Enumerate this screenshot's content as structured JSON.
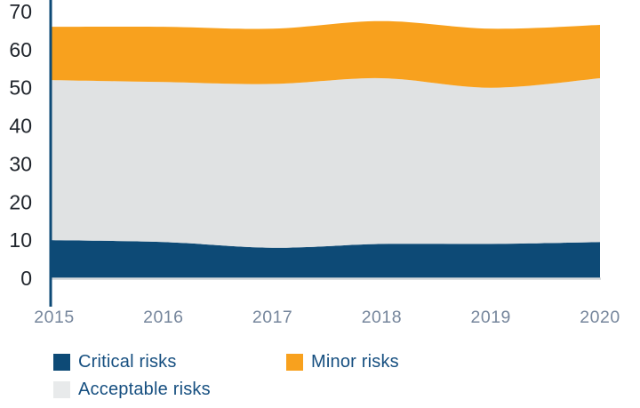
{
  "chart_data": {
    "type": "area",
    "stacked": true,
    "title": "",
    "xlabel": "",
    "ylabel": "",
    "x": [
      "2015",
      "2016",
      "2017",
      "2018",
      "2019",
      "2020"
    ],
    "series": [
      {
        "name": "Critical risks",
        "color": "#0d4a76",
        "values": [
          10,
          9.5,
          8,
          9,
          9,
          9.5
        ]
      },
      {
        "name": "Acceptable risks",
        "color": "#e0e2e3",
        "values": [
          42,
          42,
          43,
          43.5,
          41,
          43
        ]
      },
      {
        "name": "Minor risks",
        "color": "#f8a11e",
        "values": [
          14,
          14.5,
          14.5,
          15,
          15.5,
          14
        ]
      }
    ],
    "stacked_totals": [
      66,
      66,
      65.5,
      67.5,
      65.5,
      66.5
    ],
    "ylim": [
      0,
      70
    ],
    "yticks": [
      "0",
      "10",
      "20",
      "30",
      "40",
      "50",
      "60",
      "70"
    ],
    "grid": false,
    "legend_position": "bottom-left"
  },
  "legend": {
    "items": [
      {
        "label": "Critical risks",
        "color": "#0d4a76"
      },
      {
        "label": "Minor risks",
        "color": "#f8a11e"
      },
      {
        "label": "Acceptable risks",
        "color": "#e8eaeb"
      }
    ]
  },
  "colors": {
    "background": "#ffffff",
    "axis_line": "#0d4a76",
    "baseline": "#d8dadc",
    "y_tick_label": "#20252c",
    "x_tick_label": "#76869c",
    "legend_text": "#164f80"
  }
}
